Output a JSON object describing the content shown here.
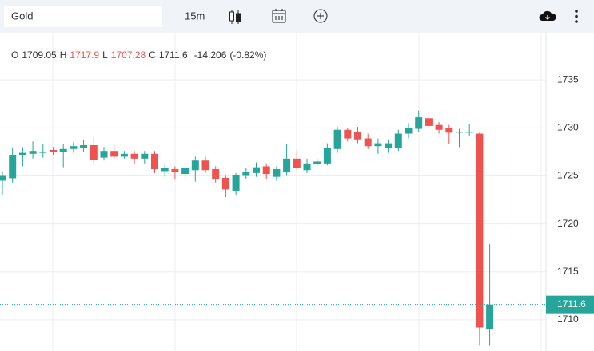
{
  "toolbar": {
    "symbol": "Gold",
    "interval": "15m"
  },
  "chart_data": {
    "type": "candlestick",
    "ohlc_labels": [
      "O",
      "H",
      "L",
      "C"
    ],
    "change": -14.206,
    "change_pct": {
      "value": -0.82,
      "label": "(-0.82%)"
    },
    "ylim": [
      1706.75,
      1739.92
    ],
    "yticks": [
      1710,
      1715,
      1720,
      1725,
      1730,
      1735
    ],
    "grid": true,
    "colors": {
      "up": "#26a69a",
      "down": "#ef5350"
    },
    "series": {
      "open": [
        1724.5,
        1724.75,
        1727.2,
        1727.3,
        1727.4,
        1727.7,
        1727.5,
        1727.8,
        1727.9,
        1728.2,
        1726.9,
        1727.6,
        1727.0,
        1727.3,
        1726.8,
        1727.3,
        1725.5,
        1725.7,
        1725.2,
        1725.6,
        1726.6,
        1725.7,
        1724.8,
        1723.4,
        1725.0,
        1725.3,
        1726.0,
        1724.9,
        1725.4,
        1726.8,
        1725.6,
        1726.2,
        1726.3,
        1727.8,
        1729.8,
        1729.6,
        1728.9,
        1728.1,
        1727.9,
        1727.9,
        1729.4,
        1729.9,
        1731.0,
        1730.3,
        1730.0,
        1729.5,
        1729.5,
        1729.4,
        1709.05
      ],
      "high": [
        1725.5,
        1727.9,
        1728.0,
        1728.6,
        1728.3,
        1728.0,
        1728.3,
        1728.5,
        1728.8,
        1729.0,
        1728.0,
        1728.2,
        1727.6,
        1727.6,
        1727.6,
        1727.6,
        1726.2,
        1726.0,
        1726.3,
        1727.0,
        1727.0,
        1726.0,
        1725.0,
        1725.3,
        1725.8,
        1726.4,
        1726.3,
        1726.0,
        1728.3,
        1727.7,
        1726.8,
        1726.8,
        1728.4,
        1730.1,
        1730.0,
        1730.1,
        1729.4,
        1728.9,
        1728.8,
        1729.8,
        1730.5,
        1731.8,
        1731.7,
        1730.6,
        1730.3,
        1729.9,
        1730.4,
        1729.5,
        1717.9
      ],
      "low": [
        1723.0,
        1724.3,
        1726.0,
        1726.8,
        1726.9,
        1727.2,
        1725.9,
        1727.4,
        1727.5,
        1726.3,
        1726.6,
        1726.8,
        1726.8,
        1726.3,
        1726.3,
        1725.3,
        1724.9,
        1724.6,
        1724.6,
        1724.4,
        1725.3,
        1724.3,
        1722.8,
        1723.0,
        1724.7,
        1724.9,
        1724.7,
        1724.5,
        1725.0,
        1725.6,
        1725.3,
        1726.0,
        1726.1,
        1727.4,
        1728.6,
        1728.4,
        1727.8,
        1727.3,
        1727.4,
        1727.6,
        1728.9,
        1729.6,
        1729.9,
        1729.4,
        1728.3,
        1728.0,
        1729.2,
        1707.3,
        1707.28
      ],
      "close": [
        1725.0,
        1727.2,
        1727.4,
        1727.6,
        1727.5,
        1727.5,
        1727.8,
        1728.1,
        1728.2,
        1726.7,
        1727.6,
        1727.0,
        1727.3,
        1726.8,
        1727.3,
        1725.7,
        1725.8,
        1725.4,
        1725.8,
        1726.6,
        1725.6,
        1724.7,
        1723.6,
        1725.1,
        1725.4,
        1725.9,
        1725.2,
        1725.7,
        1726.8,
        1725.8,
        1726.3,
        1726.5,
        1727.9,
        1729.8,
        1728.9,
        1728.8,
        1728.1,
        1728.4,
        1728.4,
        1729.4,
        1730.0,
        1731.1,
        1730.2,
        1729.8,
        1729.5,
        1729.6,
        1729.6,
        1709.2,
        1711.6
      ]
    }
  }
}
